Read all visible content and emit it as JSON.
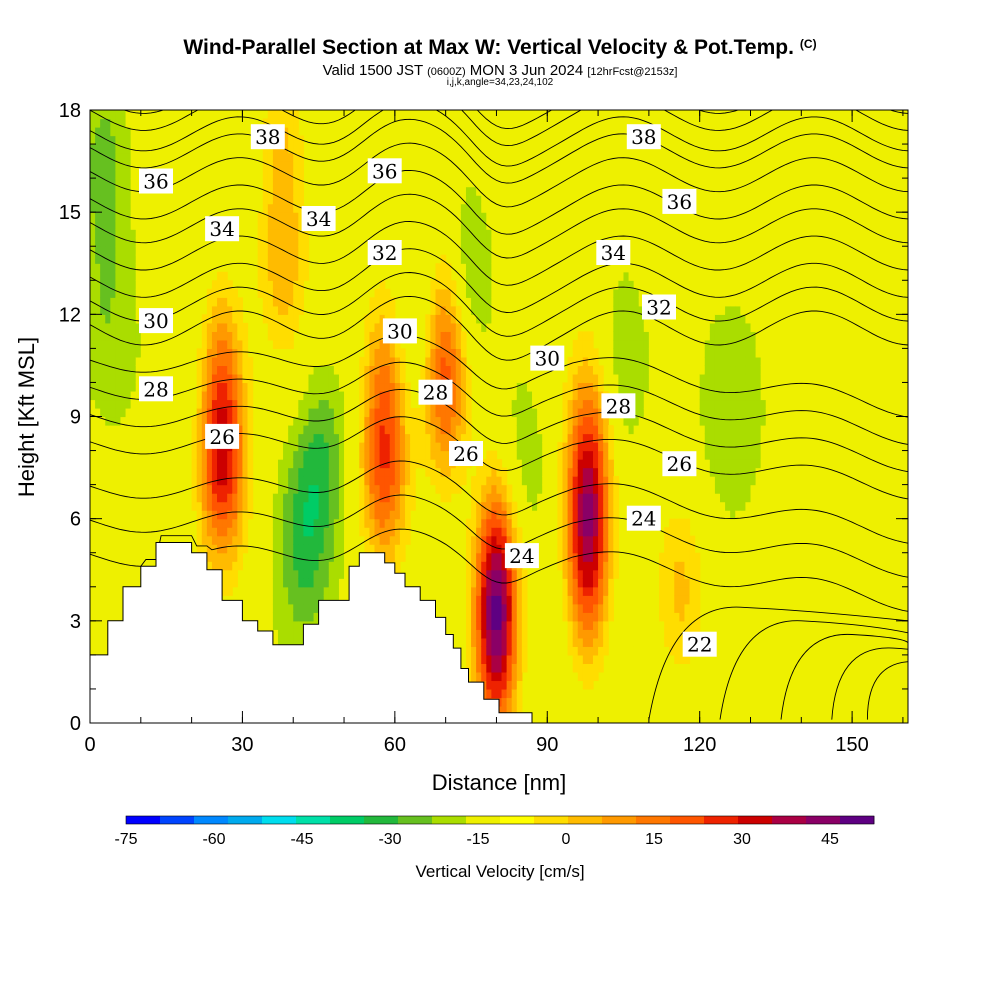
{
  "header": {
    "title": "Wind-Parallel Section at Max W: Vertical Velocity & Pot.Temp.",
    "copyright": "(C)",
    "valid_prefix": "Valid 1500 JST",
    "valid_utc": "(0600Z)",
    "valid_date": "MON 3 Jun 2024",
    "forecast": "[12hrFcst@2153z]",
    "params": "i,j,k,angle=34,23,24,102"
  },
  "chart_data": {
    "type": "heatmap",
    "title": "Wind-Parallel Section at Max W: Vertical Velocity & Pot.Temp.",
    "xlabel": "Distance [nm]",
    "ylabel": "Height [Kft MSL]",
    "xlim": [
      0,
      161
    ],
    "ylim": [
      0,
      18
    ],
    "x_ticks": [
      0,
      30,
      60,
      90,
      120,
      150
    ],
    "x_tick_labels": [
      "0",
      "30",
      "60",
      "90",
      "120",
      "150"
    ],
    "y_ticks": [
      0,
      3,
      6,
      9,
      12,
      15,
      18
    ],
    "y_tick_labels": [
      "0",
      "3",
      "6",
      "9",
      "12",
      "15",
      "18"
    ],
    "terrain": {
      "x": [
        0,
        3.5,
        3.5,
        6.5,
        6.5,
        10,
        10,
        13,
        13,
        20,
        20,
        23,
        23,
        26,
        26,
        30,
        30,
        33,
        33,
        36,
        36,
        42,
        42,
        45,
        45,
        51,
        51,
        53,
        53,
        58,
        58,
        60,
        60,
        62,
        62,
        65,
        65,
        68,
        68,
        70,
        70,
        71.5,
        71.5,
        73,
        73,
        74.5,
        74.5,
        77.5,
        77.5,
        80.5,
        80.5,
        87,
        87,
        161
      ],
      "height_kft": [
        2.0,
        2.0,
        3.0,
        3.0,
        4.0,
        4.0,
        4.6,
        4.6,
        5.3,
        5.3,
        5.0,
        5.0,
        4.5,
        4.5,
        3.6,
        3.6,
        3.0,
        3.0,
        2.7,
        2.7,
        2.3,
        2.3,
        2.9,
        2.9,
        3.6,
        3.6,
        4.6,
        4.6,
        5.0,
        5.0,
        4.7,
        4.7,
        4.4,
        4.4,
        4.0,
        4.0,
        3.6,
        3.6,
        3.1,
        3.1,
        2.6,
        2.6,
        2.2,
        2.2,
        1.6,
        1.6,
        1.2,
        1.2,
        0.7,
        0.7,
        0.3,
        0.3,
        0.0,
        0.0
      ]
    },
    "vertical_velocity_cells": [
      {
        "x": 26,
        "z": 9.3,
        "w": 42
      },
      {
        "x": 26,
        "z": 7.0,
        "w": 30
      },
      {
        "x": 38,
        "z": 13.5,
        "w": 22
      },
      {
        "x": 38,
        "z": 17.5,
        "w": 18
      },
      {
        "x": 42,
        "z": 5.5,
        "w": -22
      },
      {
        "x": 46,
        "z": 7.8,
        "w": -18
      },
      {
        "x": 58,
        "z": 9.5,
        "w": 32
      },
      {
        "x": 58,
        "z": 7.0,
        "w": 28
      },
      {
        "x": 70,
        "z": 11.5,
        "w": 34
      },
      {
        "x": 70,
        "z": 9.5,
        "w": 25
      },
      {
        "x": 73,
        "z": 13.2,
        "w": -18
      },
      {
        "x": 65,
        "z": 11.8,
        "w": -10
      },
      {
        "x": 80,
        "z": 4.0,
        "w": 50
      },
      {
        "x": 80,
        "z": 2.5,
        "w": 35
      },
      {
        "x": 85,
        "z": 7.5,
        "w": -10
      },
      {
        "x": 98,
        "z": 5.0,
        "w": 48
      },
      {
        "x": 98,
        "z": 7.5,
        "w": 35
      },
      {
        "x": 116,
        "z": 4.0,
        "w": 20
      },
      {
        "x": 105,
        "z": 10.5,
        "w": -12
      },
      {
        "x": 3,
        "z": 16.5,
        "w": -15
      },
      {
        "x": 3,
        "z": 12.0,
        "w": -10
      },
      {
        "x": 126,
        "z": 9.0,
        "w": -8
      },
      {
        "x": 150,
        "z": 12.0,
        "w": -5
      }
    ],
    "theta_contour_labels": [
      {
        "value": "38",
        "x": 35,
        "z": 17.2
      },
      {
        "value": "38",
        "x": 109,
        "z": 17.2
      },
      {
        "value": "36",
        "x": 13,
        "z": 15.9
      },
      {
        "value": "36",
        "x": 58,
        "z": 16.2
      },
      {
        "value": "36",
        "x": 116,
        "z": 15.3
      },
      {
        "value": "34",
        "x": 26,
        "z": 14.5
      },
      {
        "value": "34",
        "x": 45,
        "z": 14.8
      },
      {
        "value": "34",
        "x": 103,
        "z": 13.8
      },
      {
        "value": "32",
        "x": 58,
        "z": 13.8
      },
      {
        "value": "32",
        "x": 112,
        "z": 12.2
      },
      {
        "value": "30",
        "x": 13,
        "z": 11.8
      },
      {
        "value": "30",
        "x": 61,
        "z": 11.5
      },
      {
        "value": "30",
        "x": 90,
        "z": 10.7
      },
      {
        "value": "28",
        "x": 13,
        "z": 9.8
      },
      {
        "value": "28",
        "x": 68,
        "z": 9.7
      },
      {
        "value": "28",
        "x": 104,
        "z": 9.3
      },
      {
        "value": "26",
        "x": 26,
        "z": 8.4
      },
      {
        "value": "26",
        "x": 74,
        "z": 7.9
      },
      {
        "value": "26",
        "x": 116,
        "z": 7.6
      },
      {
        "value": "24",
        "x": 85,
        "z": 4.9
      },
      {
        "value": "24",
        "x": 109,
        "z": 6.0
      },
      {
        "value": "22",
        "x": 120,
        "z": 2.3
      }
    ],
    "colorbar": {
      "label": "Vertical Velocity [cm/s]",
      "min": -75,
      "max": 52.5,
      "step": 7.5,
      "tick_values": [
        -75,
        -60,
        -45,
        -30,
        -15,
        0,
        15,
        30,
        45
      ],
      "tick_labels": [
        "-75",
        "-60",
        "-45",
        "-30",
        "-15",
        "0",
        "15",
        "30",
        "45"
      ],
      "colors": [
        "#0000ff",
        "#0044ff",
        "#0088ff",
        "#00aaee",
        "#00ddee",
        "#00e0a8",
        "#00cc66",
        "#22b83c",
        "#66c020",
        "#aadd00",
        "#eef000",
        "#ffff00",
        "#ffdd00",
        "#ffbb00",
        "#ff9900",
        "#ff7700",
        "#ff5500",
        "#ee2200",
        "#cc0000",
        "#aa0044",
        "#8a0066",
        "#5e0082"
      ]
    }
  },
  "colors": {
    "background": "#ffffff",
    "terrain_fill": "#ffffff",
    "contour_line": "#000000",
    "axis": "#000000"
  }
}
